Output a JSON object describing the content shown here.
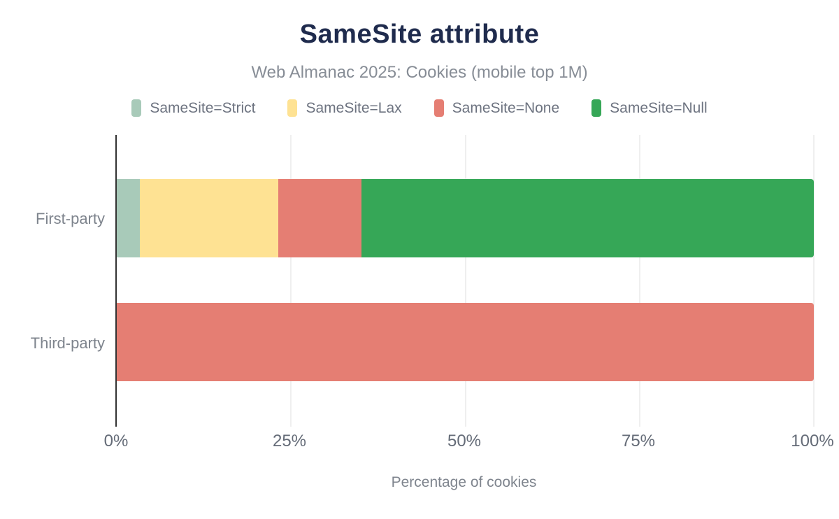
{
  "header": {
    "title": "SameSite attribute",
    "subtitle": "Web Almanac 2025: Cookies (mobile top 1M)"
  },
  "colors": {
    "title_text": "#1f2b4d",
    "subtitle_text": "#878d96",
    "legend_text": "#6d7380",
    "axis_line": "#333333",
    "gridline": "#efefef",
    "strict": "#a8cab9",
    "lax": "#fee293",
    "none": "#e57e73",
    "null": "#36a757"
  },
  "chart_data": {
    "type": "bar",
    "orientation": "horizontal",
    "stacked": true,
    "title": "SameSite attribute",
    "subtitle": "Web Almanac 2025: Cookies (mobile top 1M)",
    "categories": [
      "First-party",
      "Third-party"
    ],
    "series": [
      {
        "key": "strict",
        "name": "SameSite=Strict",
        "color": "#a8cab9",
        "values": [
          3.3,
          0
        ]
      },
      {
        "key": "lax",
        "name": "SameSite=Lax",
        "color": "#fee293",
        "values": [
          19.9,
          0
        ]
      },
      {
        "key": "none",
        "name": "SameSite=None",
        "color": "#e57e73",
        "values": [
          11.9,
          100
        ]
      },
      {
        "key": "null",
        "name": "SameSite=Null",
        "color": "#36a757",
        "values": [
          64.9,
          0
        ]
      }
    ],
    "xlabel": "Percentage of cookies",
    "ylabel": "",
    "xlim": [
      0,
      100
    ],
    "xticks": [
      "0%",
      "25%",
      "50%",
      "75%",
      "100%"
    ],
    "grid": true,
    "legend_position": "top"
  }
}
